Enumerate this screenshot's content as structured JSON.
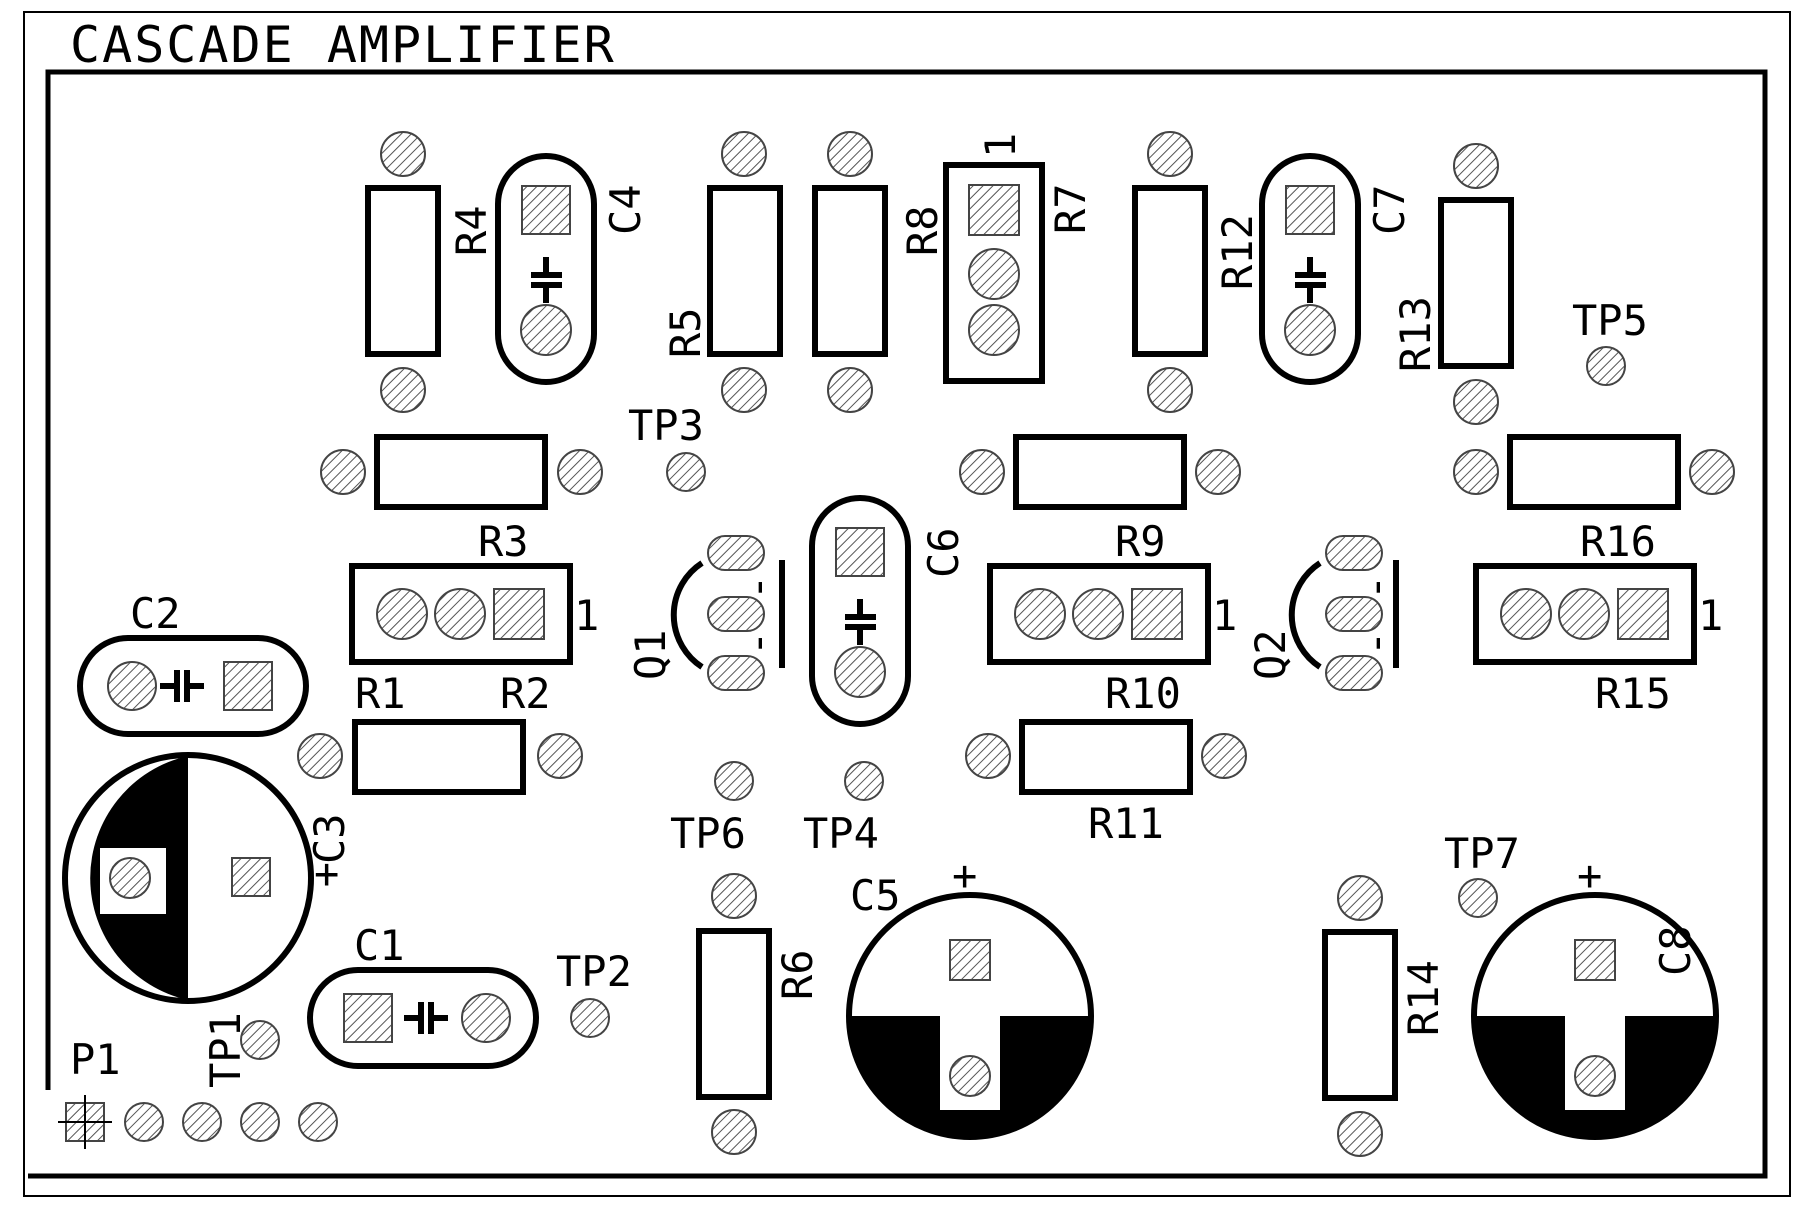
{
  "title": "CASCADE AMPLIFIER",
  "pin_marker": "1",
  "polarity_mark": "+",
  "components": {
    "r1": "R1",
    "r2": "R2",
    "r3": "R3",
    "r4": "R4",
    "r5": "R5",
    "r6": "R6",
    "r7": "R7",
    "r8": "R8",
    "r9": "R9",
    "r10": "R10",
    "r11": "R11",
    "r12": "R12",
    "r13": "R13",
    "r14": "R14",
    "r15": "R15",
    "r16": "R16",
    "c1": "C1",
    "c2": "C2",
    "c3": "C3",
    "c4": "C4",
    "c5": "C5",
    "c6": "C6",
    "c7": "C7",
    "c8": "C8",
    "q1": "Q1",
    "q2": "Q2",
    "p1": "P1"
  },
  "test_points": {
    "tp1": "TP1",
    "tp2": "TP2",
    "tp3": "TP3",
    "tp4": "TP4",
    "tp5": "TP5",
    "tp6": "TP6",
    "tp7": "TP7"
  }
}
